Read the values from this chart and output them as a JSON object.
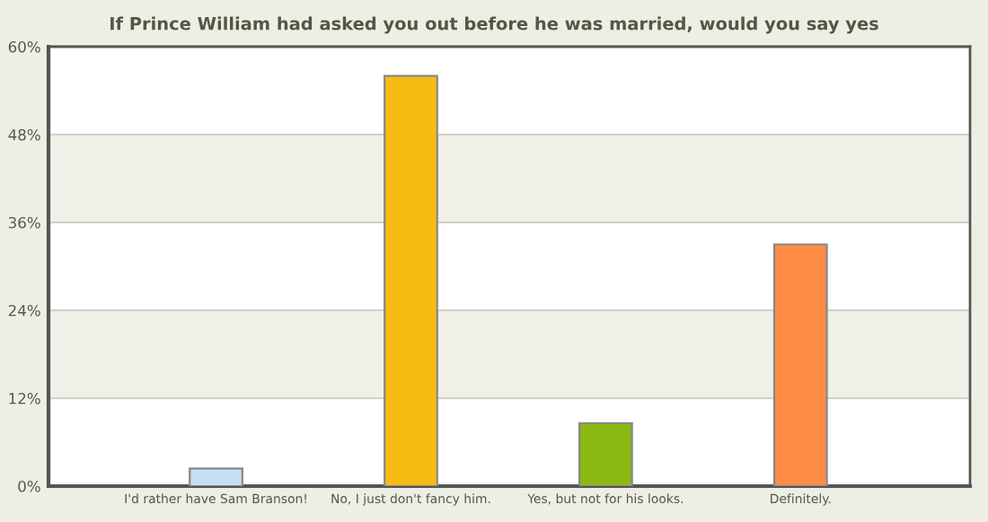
{
  "chart_data": {
    "type": "bar",
    "title": "If Prince William had asked you out before he was married, would you say yes",
    "categories": [
      "I'd rather have Sam Branson!",
      "No, I just don't fancy him.",
      "Yes, but not for his looks.",
      "Definitely."
    ],
    "values": [
      2.4,
      56,
      8.6,
      33
    ],
    "colors": [
      "#c5dff5",
      "#f7bc14",
      "#8cb814",
      "#ff8c45"
    ],
    "ylim": [
      0,
      60
    ],
    "yticks": [
      {
        "value": 0,
        "label": "0%"
      },
      {
        "value": 12,
        "label": "12%"
      },
      {
        "value": 24,
        "label": "24%"
      },
      {
        "value": 36,
        "label": "36%"
      },
      {
        "value": 48,
        "label": "48%"
      },
      {
        "value": 60,
        "label": "60%"
      }
    ],
    "bands": [
      {
        "axis": "y",
        "from": 12,
        "to": 24,
        "color": "#eff0e8"
      },
      {
        "axis": "y",
        "from": 36,
        "to": 48,
        "color": "#eff0e8"
      }
    ],
    "grid": "y"
  }
}
